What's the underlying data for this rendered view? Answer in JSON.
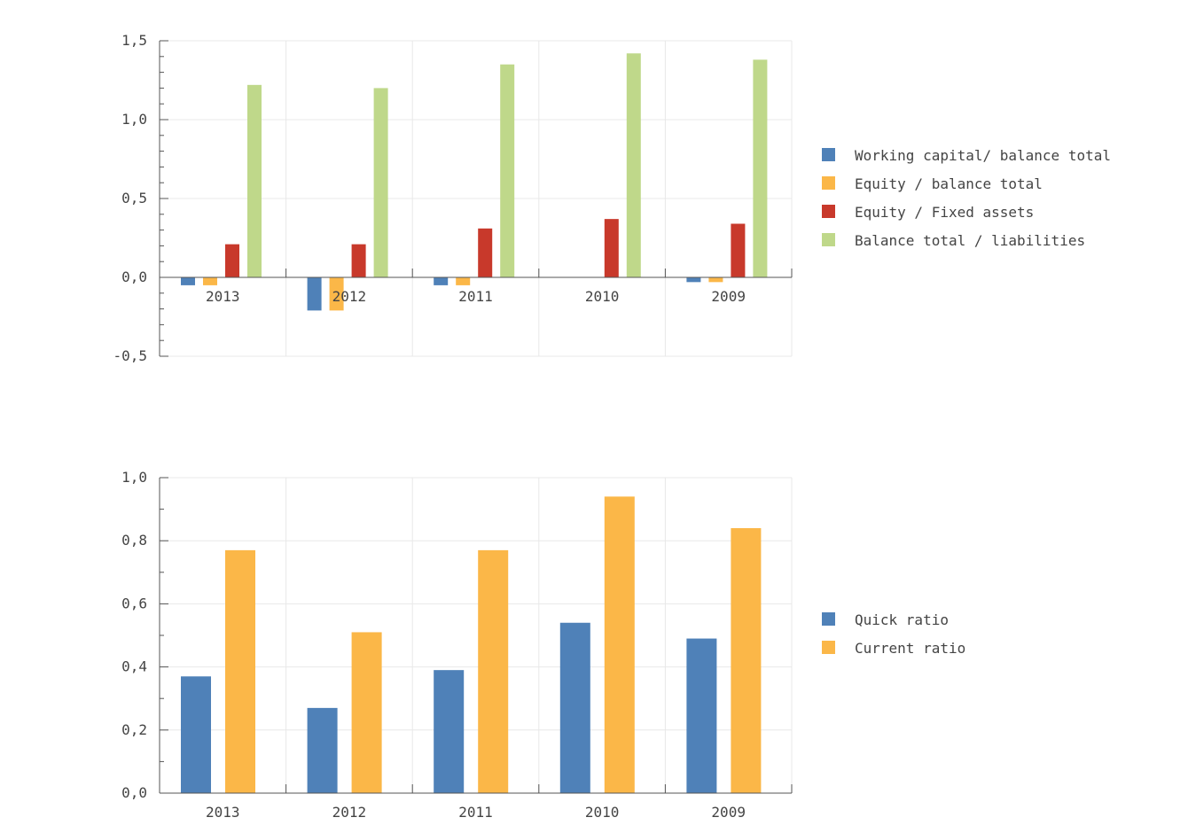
{
  "chart_data": [
    {
      "type": "bar",
      "categories": [
        "2013",
        "2012",
        "2011",
        "2010",
        "2009"
      ],
      "ylim": [
        -0.5,
        1.5
      ],
      "yticks": [
        "-0,5",
        "0,0",
        "0,5",
        "1,0",
        "1,5"
      ],
      "ytick_values": [
        -0.5,
        0,
        0.5,
        1.0,
        1.5
      ],
      "minor_step": 0.1,
      "grid": true,
      "legend_position": "right",
      "series": [
        {
          "name": "Working capital/ balance total",
          "color": "#4f81b8",
          "values": [
            -0.05,
            -0.21,
            -0.05,
            0,
            -0.03
          ]
        },
        {
          "name": "Equity / balance total",
          "color": "#fbb748",
          "values": [
            -0.05,
            -0.21,
            -0.05,
            0,
            -0.03
          ]
        },
        {
          "name": "Equity / Fixed assets",
          "color": "#c8392b",
          "values": [
            0.21,
            0.21,
            0.31,
            0.37,
            0.34
          ]
        },
        {
          "name": "Balance total / liabilities",
          "color": "#bfd88a",
          "values": [
            1.22,
            1.2,
            1.35,
            1.42,
            1.38
          ]
        }
      ]
    },
    {
      "type": "bar",
      "categories": [
        "2013",
        "2012",
        "2011",
        "2010",
        "2009"
      ],
      "ylim": [
        0,
        1.0
      ],
      "yticks": [
        "0,0",
        "0,2",
        "0,4",
        "0,6",
        "0,8",
        "1,0"
      ],
      "ytick_values": [
        0,
        0.2,
        0.4,
        0.6,
        0.8,
        1.0
      ],
      "minor_step": 0.1,
      "grid": true,
      "legend_position": "right",
      "series": [
        {
          "name": "Quick ratio",
          "color": "#4f81b8",
          "values": [
            0.37,
            0.27,
            0.39,
            0.54,
            0.49
          ]
        },
        {
          "name": "Current ratio",
          "color": "#fbb748",
          "values": [
            0.77,
            0.51,
            0.77,
            0.94,
            0.84
          ]
        }
      ]
    }
  ]
}
